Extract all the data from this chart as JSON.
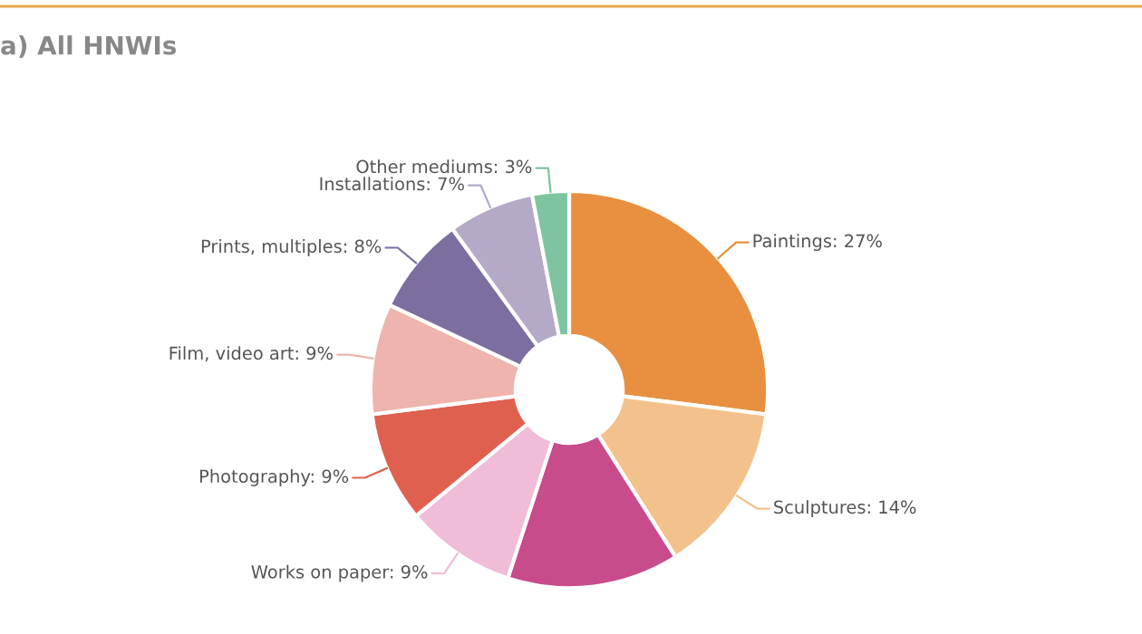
{
  "chart_data": {
    "type": "donut",
    "title": "a) All HNWIs",
    "categories": [
      "Paintings",
      "Sculptures",
      null,
      "Works on paper",
      "Photography",
      "Film, video art",
      "Prints, multiples",
      "Installations",
      "Other mediums"
    ],
    "values": [
      27,
      14,
      14,
      9,
      9,
      9,
      8,
      7,
      3
    ],
    "value_labels": [
      "27%",
      "14%",
      null,
      "9%",
      "9%",
      "9%",
      "8%",
      "7%",
      "3%"
    ],
    "colors": [
      "#e8903f",
      "#f3c28c",
      "#c84b8c",
      "#f0bcd8",
      "#e06050",
      "#eeb4ad",
      "#7c6fa0",
      "#b5a9c8",
      "#7fc4a0"
    ]
  }
}
